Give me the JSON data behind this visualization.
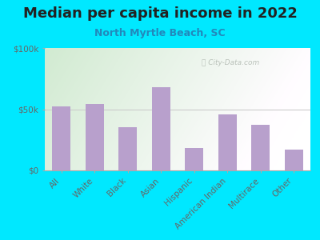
{
  "title": "Median per capita income in 2022",
  "subtitle": "North Myrtle Beach, SC",
  "categories": [
    "All",
    "White",
    "Black",
    "Asian",
    "Hispanic",
    "American Indian",
    "Multirace",
    "Other"
  ],
  "values": [
    52000,
    54000,
    35000,
    68000,
    18000,
    46000,
    37000,
    17000
  ],
  "bar_color": "#b8a0cc",
  "background_outer": "#00e8ff",
  "title_color": "#222222",
  "subtitle_color": "#2288bb",
  "tick_color": "#666666",
  "ylim": [
    0,
    100000
  ],
  "yticks": [
    0,
    50000,
    100000
  ],
  "ytick_labels": [
    "$0",
    "$50k",
    "$100k"
  ],
  "watermark": "City-Data.com",
  "title_fontsize": 13,
  "subtitle_fontsize": 9,
  "tick_fontsize": 7.5,
  "grid_color": "#cccccc",
  "inner_bg_left": "#d8eecc",
  "inner_bg_right": "#f8fff4"
}
